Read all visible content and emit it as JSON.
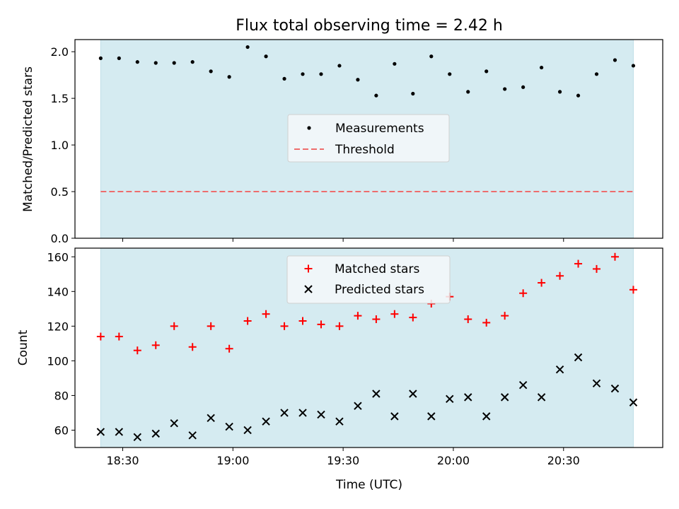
{
  "title": "Flux total observing time = 2.42 h",
  "colors": {
    "shade": "#d5ebf1",
    "measurement": "#000000",
    "threshold": "#ee6d6d",
    "matched": "#ff0000",
    "predicted": "#000000"
  },
  "chart_data": [
    {
      "type": "scatter",
      "title": "Flux total observing time = 2.42 h",
      "xlabel": "",
      "ylabel": "Matched/Predicted stars",
      "ylim": [
        0,
        2.13
      ],
      "yticks": [
        "0.0",
        "0.5",
        "1.0",
        "1.5",
        "2.0"
      ],
      "ytick_values": [
        0,
        0.5,
        1.0,
        1.5,
        2.0
      ],
      "shaded_span": [
        "18:24",
        "20:49"
      ],
      "legend_position": "center",
      "legend": [
        "Measurements",
        "Threshold"
      ],
      "threshold": 0.5,
      "series": [
        {
          "name": "Measurements",
          "marker": "dot",
          "x": [
            "18:24",
            "18:29",
            "18:34",
            "18:39",
            "18:44",
            "18:49",
            "18:54",
            "18:59",
            "19:04",
            "19:09",
            "19:14",
            "19:19",
            "19:24",
            "19:29",
            "19:34",
            "19:39",
            "19:44",
            "19:49",
            "19:54",
            "19:59",
            "20:04",
            "20:09",
            "20:14",
            "20:19",
            "20:24",
            "20:29",
            "20:34",
            "20:39",
            "20:44",
            "20:49"
          ],
          "y": [
            1.93,
            1.93,
            1.89,
            1.88,
            1.88,
            1.89,
            1.79,
            1.73,
            2.05,
            1.95,
            1.71,
            1.76,
            1.76,
            1.85,
            1.7,
            1.53,
            1.87,
            1.55,
            1.95,
            1.76,
            1.57,
            1.79,
            1.6,
            1.62,
            1.83,
            1.57,
            1.53,
            1.76,
            1.91,
            1.85
          ]
        }
      ]
    },
    {
      "type": "scatter",
      "xlabel": "Time (UTC)",
      "ylabel": "Count",
      "ylim": [
        50,
        165
      ],
      "yticks": [
        "60",
        "80",
        "100",
        "120",
        "140",
        "160"
      ],
      "ytick_values": [
        60,
        80,
        100,
        120,
        140,
        160
      ],
      "xticks": [
        "18:30",
        "19:00",
        "19:30",
        "20:00",
        "20:30"
      ],
      "xlim": [
        "18:17",
        "20:57"
      ],
      "shaded_span": [
        "18:24",
        "20:49"
      ],
      "legend_position": "upper center",
      "legend": [
        "Matched stars",
        "Predicted stars"
      ],
      "series": [
        {
          "name": "Matched stars",
          "marker": "plus",
          "x": [
            "18:24",
            "18:29",
            "18:34",
            "18:39",
            "18:44",
            "18:49",
            "18:54",
            "18:59",
            "19:04",
            "19:09",
            "19:14",
            "19:19",
            "19:24",
            "19:29",
            "19:34",
            "19:39",
            "19:44",
            "19:49",
            "19:54",
            "19:59",
            "20:04",
            "20:09",
            "20:14",
            "20:19",
            "20:24",
            "20:29",
            "20:34",
            "20:39",
            "20:44",
            "20:49"
          ],
          "y": [
            114,
            114,
            106,
            109,
            120,
            108,
            120,
            107,
            123,
            127,
            120,
            123,
            121,
            120,
            126,
            124,
            127,
            125,
            133,
            137,
            124,
            122,
            126,
            139,
            145,
            149,
            156,
            153,
            160,
            141
          ]
        },
        {
          "name": "Predicted stars",
          "marker": "x",
          "x": [
            "18:24",
            "18:29",
            "18:34",
            "18:39",
            "18:44",
            "18:49",
            "18:54",
            "18:59",
            "19:04",
            "19:09",
            "19:14",
            "19:19",
            "19:24",
            "19:29",
            "19:34",
            "19:39",
            "19:44",
            "19:49",
            "19:54",
            "19:59",
            "20:04",
            "20:09",
            "20:14",
            "20:19",
            "20:24",
            "20:29",
            "20:34",
            "20:39",
            "20:44",
            "20:49"
          ],
          "y": [
            59,
            59,
            56,
            58,
            64,
            57,
            67,
            62,
            60,
            65,
            70,
            70,
            69,
            65,
            74,
            81,
            68,
            81,
            68,
            78,
            79,
            68,
            79,
            86,
            79,
            95,
            102,
            87,
            84,
            76
          ]
        }
      ]
    }
  ]
}
